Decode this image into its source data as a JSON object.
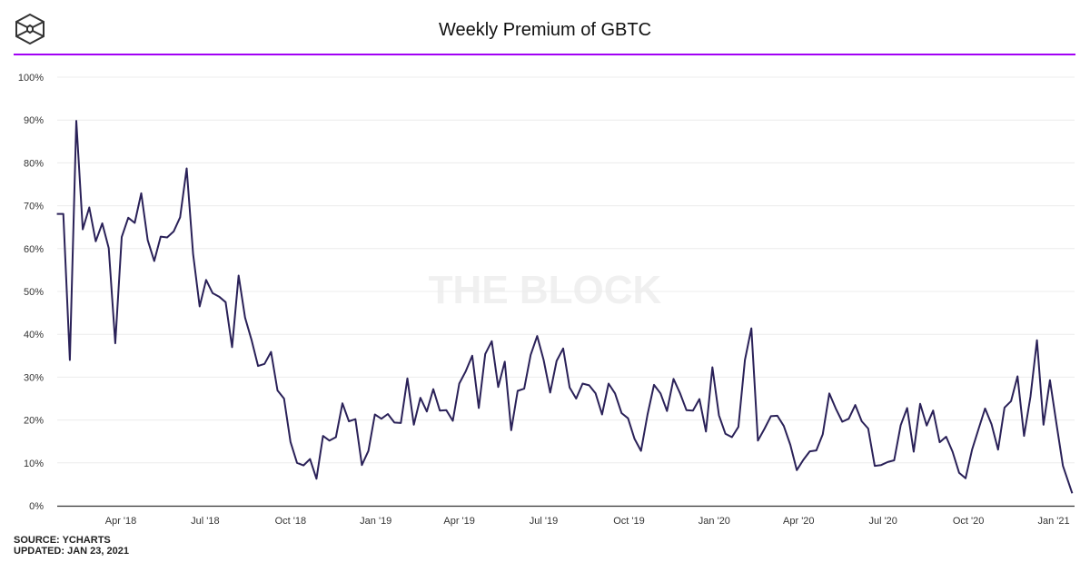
{
  "header": {
    "title": "Weekly Premium of GBTC",
    "logo": "the-block-cube-logo"
  },
  "watermark": "THE BLOCK",
  "colors": {
    "line": "#2a2158",
    "accent_rule": "#a200f5",
    "grid": "#ececec",
    "axis": "#333333"
  },
  "footer": {
    "source": "SOURCE: YCHARTS",
    "updated": "UPDATED: JAN 23, 2021"
  },
  "chart_data": {
    "type": "line",
    "title": "Weekly Premium of GBTC",
    "xlabel": "",
    "ylabel": "",
    "ylim": [
      0,
      100
    ],
    "y_unit": "%",
    "grid": true,
    "y_ticks": [
      "0%",
      "10%",
      "20%",
      "30%",
      "40%",
      "50%",
      "60%",
      "70%",
      "80%",
      "90%",
      "100%"
    ],
    "x_ticks": [
      {
        "label": "Apr '18",
        "date": "2018-04-01"
      },
      {
        "label": "Jul '18",
        "date": "2018-07-01"
      },
      {
        "label": "Oct '18",
        "date": "2018-10-01"
      },
      {
        "label": "Jan '19",
        "date": "2019-01-01"
      },
      {
        "label": "Apr '19",
        "date": "2019-04-01"
      },
      {
        "label": "Jul '19",
        "date": "2019-07-01"
      },
      {
        "label": "Oct '19",
        "date": "2019-10-01"
      },
      {
        "label": "Jan '20",
        "date": "2020-01-01"
      },
      {
        "label": "Apr '20",
        "date": "2020-04-01"
      },
      {
        "label": "Jul '20",
        "date": "2020-07-01"
      },
      {
        "label": "Oct '20",
        "date": "2020-10-01"
      },
      {
        "label": "Jan '21",
        "date": "2021-01-01"
      }
    ],
    "x": [
      "2018-01-22",
      "2018-01-29",
      "2018-02-05",
      "2018-02-12",
      "2018-02-19",
      "2018-02-26",
      "2018-03-05",
      "2018-03-12",
      "2018-03-19",
      "2018-03-26",
      "2018-04-02",
      "2018-04-09",
      "2018-04-16",
      "2018-04-23",
      "2018-04-30",
      "2018-05-07",
      "2018-05-14",
      "2018-05-21",
      "2018-05-28",
      "2018-06-04",
      "2018-06-11",
      "2018-06-18",
      "2018-06-25",
      "2018-07-02",
      "2018-07-09",
      "2018-07-16",
      "2018-07-23",
      "2018-07-30",
      "2018-08-06",
      "2018-08-13",
      "2018-08-20",
      "2018-08-27",
      "2018-09-03",
      "2018-09-10",
      "2018-09-17",
      "2018-09-24",
      "2018-10-01",
      "2018-10-08",
      "2018-10-15",
      "2018-10-22",
      "2018-10-29",
      "2018-11-05",
      "2018-11-12",
      "2018-11-19",
      "2018-11-26",
      "2018-12-03",
      "2018-12-10",
      "2018-12-17",
      "2018-12-24",
      "2018-12-31",
      "2019-01-07",
      "2019-01-14",
      "2019-01-21",
      "2019-01-28",
      "2019-02-04",
      "2019-02-11",
      "2019-02-18",
      "2019-02-25",
      "2019-03-04",
      "2019-03-11",
      "2019-03-18",
      "2019-03-25",
      "2019-04-01",
      "2019-04-08",
      "2019-04-15",
      "2019-04-22",
      "2019-04-29",
      "2019-05-06",
      "2019-05-13",
      "2019-05-20",
      "2019-05-27",
      "2019-06-03",
      "2019-06-10",
      "2019-06-17",
      "2019-06-24",
      "2019-07-01",
      "2019-07-08",
      "2019-07-15",
      "2019-07-22",
      "2019-07-29",
      "2019-08-05",
      "2019-08-12",
      "2019-08-19",
      "2019-08-26",
      "2019-09-02",
      "2019-09-09",
      "2019-09-16",
      "2019-09-23",
      "2019-09-30",
      "2019-10-07",
      "2019-10-14",
      "2019-10-21",
      "2019-10-28",
      "2019-11-04",
      "2019-11-11",
      "2019-11-18",
      "2019-11-25",
      "2019-12-02",
      "2019-12-09",
      "2019-12-16",
      "2019-12-23",
      "2019-12-30",
      "2020-01-06",
      "2020-01-13",
      "2020-01-20",
      "2020-01-27",
      "2020-02-03",
      "2020-02-10",
      "2020-02-17",
      "2020-02-24",
      "2020-03-02",
      "2020-03-09",
      "2020-03-16",
      "2020-03-23",
      "2020-03-30",
      "2020-04-06",
      "2020-04-13",
      "2020-04-20",
      "2020-04-27",
      "2020-05-04",
      "2020-05-11",
      "2020-05-18",
      "2020-05-25",
      "2020-06-01",
      "2020-06-08",
      "2020-06-15",
      "2020-06-22",
      "2020-06-29",
      "2020-07-06",
      "2020-07-13",
      "2020-07-20",
      "2020-07-27",
      "2020-08-03",
      "2020-08-10",
      "2020-08-17",
      "2020-08-24",
      "2020-08-31",
      "2020-09-07",
      "2020-09-14",
      "2020-09-21",
      "2020-09-28",
      "2020-10-05",
      "2020-10-12",
      "2020-10-19",
      "2020-10-26",
      "2020-11-02",
      "2020-11-09",
      "2020-11-16",
      "2020-11-23",
      "2020-11-30",
      "2020-12-07",
      "2020-12-14",
      "2020-12-21",
      "2020-12-28",
      "2021-01-04",
      "2021-01-11",
      "2021-01-18"
    ],
    "y": [
      68.1,
      68.1,
      34.0,
      89.8,
      64.5,
      69.6,
      61.7,
      65.9,
      60.1,
      37.9,
      62.7,
      67.2,
      66.0,
      72.9,
      62.0,
      57.1,
      62.8,
      62.6,
      64.0,
      67.3,
      78.7,
      58.7,
      46.5,
      52.7,
      49.6,
      48.8,
      47.5,
      37.0,
      53.7,
      43.9,
      38.7,
      32.6,
      33.1,
      35.9,
      26.9,
      25.0,
      14.9,
      10.0,
      9.4,
      10.9,
      6.3,
      16.3,
      15.2,
      16.0,
      23.9,
      19.7,
      20.2,
      9.5,
      12.8,
      21.3,
      20.3,
      21.4,
      19.4,
      19.3,
      29.7,
      18.9,
      25.2,
      22.0,
      27.2,
      22.2,
      22.3,
      19.8,
      28.5,
      31.4,
      35.0,
      22.8,
      35.4,
      38.4,
      27.7,
      33.6,
      17.6,
      26.8,
      27.3,
      35.2,
      39.6,
      34.0,
      26.4,
      33.8,
      36.7,
      27.6,
      25.0,
      28.5,
      28.1,
      26.2,
      21.3,
      28.5,
      26.2,
      21.6,
      20.4,
      15.6,
      12.8,
      21.3,
      28.2,
      26.2,
      22.1,
      29.6,
      26.3,
      22.3,
      22.2,
      24.9,
      17.3,
      32.3,
      21.1,
      16.8,
      16.0,
      18.4,
      34.0,
      41.4,
      15.2,
      17.9,
      20.9,
      21.0,
      18.6,
      14.2,
      8.3,
      10.7,
      12.7,
      12.9,
      16.7,
      26.2,
      22.7,
      19.6,
      20.3,
      23.5,
      19.7,
      18.0,
      9.3,
      9.5,
      10.2,
      10.6,
      18.8,
      22.8,
      12.6,
      23.8,
      18.7,
      22.2,
      14.8,
      16.1,
      12.6,
      7.7,
      6.4,
      13.1,
      17.9,
      22.7,
      19.0,
      13.1,
      22.9,
      24.4,
      30.2,
      16.3,
      25.5,
      38.6,
      18.9,
      29.3,
      19.1,
      9.3,
      2.9
    ]
  }
}
